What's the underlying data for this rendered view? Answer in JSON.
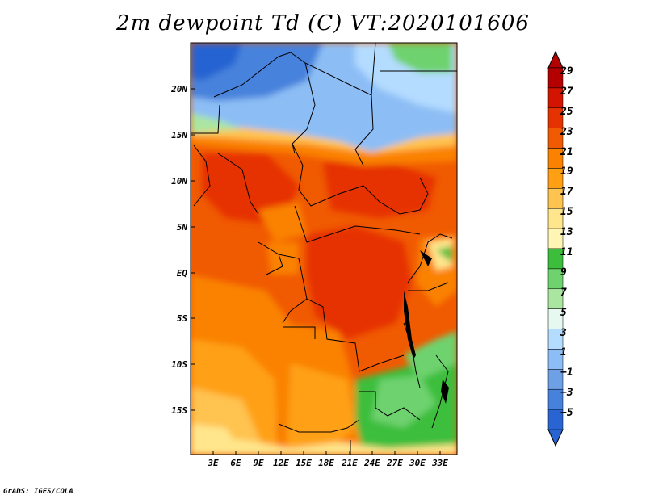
{
  "title": "2m dewpoint Td (C) VT:2020101606",
  "credit": "GrADS: IGES/COLA",
  "latitude_labels": [
    "20N",
    "15N",
    "10N",
    "5N",
    "EQ",
    "5S",
    "10S",
    "15S"
  ],
  "longitude_labels": [
    "3E",
    "6E",
    "9E",
    "12E",
    "15E",
    "18E",
    "21E",
    "24E",
    "27E",
    "30E",
    "33E"
  ],
  "colorbar": {
    "labels": [
      "29",
      "27",
      "25",
      "23",
      "21",
      "19",
      "17",
      "15",
      "13",
      "11",
      "9",
      "7",
      "5",
      "3",
      "1",
      "−1",
      "−3",
      "−5"
    ],
    "colors": [
      "#b40000",
      "#d21400",
      "#e63200",
      "#f05a00",
      "#fa8200",
      "#ffa014",
      "#ffc350",
      "#ffe68c",
      "#fff5b4",
      "#3cbe3c",
      "#6ed26e",
      "#aae6a0",
      "#e6f8f0",
      "#b4dcff",
      "#8cbef5",
      "#6ea0e6",
      "#4682dc",
      "#2864d2"
    ]
  }
}
